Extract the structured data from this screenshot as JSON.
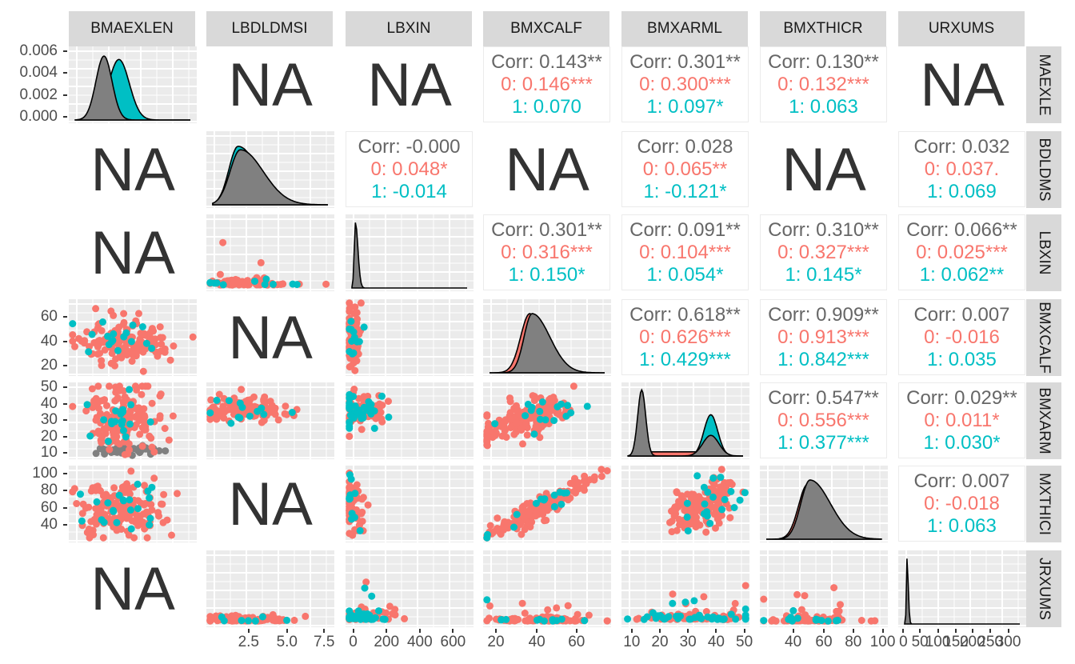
{
  "chart_data": {
    "type": "scatter",
    "title": "",
    "variables": [
      "BMAEXLEN",
      "LBDLDMSI",
      "LBXIN",
      "BMXCALF",
      "BMXARML",
      "BMXTHICR",
      "URXUMS"
    ],
    "row_strip_labels": [
      "MAEXLE",
      "BDLDMS",
      "LBXIN",
      "BMXCALF",
      "BMXARM",
      "MXTHICI",
      "JRXUMS"
    ],
    "groups": [
      {
        "name": "0",
        "color": "#f8766d"
      },
      {
        "name": "1",
        "color": "#00bfc4"
      },
      {
        "name": "NA",
        "color": "#808080"
      }
    ],
    "na_label": "NA",
    "correlations": [
      {
        "row": 0,
        "col": 3,
        "total": "Corr: 0.143**",
        "g0": "0: 0.146***",
        "g1": "1: 0.070"
      },
      {
        "row": 0,
        "col": 4,
        "total": "Corr: 0.301**",
        "g0": "0: 0.300***",
        "g1": "1: 0.097*"
      },
      {
        "row": 0,
        "col": 5,
        "total": "Corr: 0.130**",
        "g0": "0: 0.132***",
        "g1": "1: 0.063"
      },
      {
        "row": 1,
        "col": 2,
        "total": "Corr: -0.000",
        "g0": "0: 0.048*",
        "g1": "1: -0.014"
      },
      {
        "row": 1,
        "col": 4,
        "total": "Corr: 0.028",
        "g0": "0: 0.065**",
        "g1": "1: -0.121*"
      },
      {
        "row": 1,
        "col": 6,
        "total": "Corr: 0.032",
        "g0": "0: 0.037.",
        "g1": "1: 0.069"
      },
      {
        "row": 2,
        "col": 3,
        "total": "Corr: 0.301**",
        "g0": "0: 0.316***",
        "g1": "1: 0.150*"
      },
      {
        "row": 2,
        "col": 4,
        "total": "Corr: 0.091**",
        "g0": "0: 0.104***",
        "g1": "1: 0.054*"
      },
      {
        "row": 2,
        "col": 5,
        "total": "Corr: 0.310**",
        "g0": "0: 0.327***",
        "g1": "1: 0.145*"
      },
      {
        "row": 2,
        "col": 6,
        "total": "Corr: 0.066**",
        "g0": "0: 0.025***",
        "g1": "1: 0.062**"
      },
      {
        "row": 3,
        "col": 4,
        "total": "Corr: 0.618**",
        "g0": "0: 0.626***",
        "g1": "1: 0.429***"
      },
      {
        "row": 3,
        "col": 5,
        "total": "Corr: 0.909**",
        "g0": "0: 0.913***",
        "g1": "1: 0.842***"
      },
      {
        "row": 3,
        "col": 6,
        "total": "Corr: 0.007",
        "g0": "0: -0.016",
        "g1": "1: 0.035"
      },
      {
        "row": 4,
        "col": 5,
        "total": "Corr: 0.547**",
        "g0": "0: 0.556***",
        "g1": "1: 0.377***"
      },
      {
        "row": 4,
        "col": 6,
        "total": "Corr: 0.029**",
        "g0": "0: 0.011*",
        "g1": "1: 0.030*"
      },
      {
        "row": 5,
        "col": 6,
        "total": "Corr: 0.007",
        "g0": "0: -0.018",
        "g1": "1: 0.063"
      }
    ],
    "na_cells": [
      {
        "row": 0,
        "col": 1
      },
      {
        "row": 0,
        "col": 2
      },
      {
        "row": 0,
        "col": 6
      },
      {
        "row": 1,
        "col": 0
      },
      {
        "row": 1,
        "col": 3
      },
      {
        "row": 1,
        "col": 5
      },
      {
        "row": 2,
        "col": 0
      },
      {
        "row": 3,
        "col": 1
      },
      {
        "row": 5,
        "col": 1
      },
      {
        "row": 6,
        "col": 0
      }
    ],
    "density_cells": [
      {
        "row": 0,
        "col": 0,
        "desc": "bimodal-overlap, teal shifted right"
      },
      {
        "row": 1,
        "col": 1,
        "desc": "right-skewed"
      },
      {
        "row": 2,
        "col": 2,
        "desc": "sharp spike near 0"
      },
      {
        "row": 3,
        "col": 3,
        "desc": "unimodal ~38"
      },
      {
        "row": 4,
        "col": 4,
        "desc": "bimodal ~14 and ~38"
      },
      {
        "row": 5,
        "col": 5,
        "desc": "unimodal ~50"
      },
      {
        "row": 6,
        "col": 6,
        "desc": "spike near 0"
      }
    ],
    "scatter_cells": [
      {
        "row": 2,
        "col": 1
      },
      {
        "row": 3,
        "col": 0
      },
      {
        "row": 3,
        "col": 2
      },
      {
        "row": 4,
        "col": 0
      },
      {
        "row": 4,
        "col": 1
      },
      {
        "row": 4,
        "col": 2
      },
      {
        "row": 4,
        "col": 3
      },
      {
        "row": 5,
        "col": 0
      },
      {
        "row": 5,
        "col": 2
      },
      {
        "row": 5,
        "col": 3
      },
      {
        "row": 5,
        "col": 4
      },
      {
        "row": 6,
        "col": 1
      },
      {
        "row": 6,
        "col": 2
      },
      {
        "row": 6,
        "col": 3
      },
      {
        "row": 6,
        "col": 4
      },
      {
        "row": 6,
        "col": 5
      }
    ],
    "y_axes": [
      {
        "row": 0,
        "ticks": [
          "0.006",
          "0.004",
          "0.002",
          "0.000"
        ],
        "range": [
          0,
          0.006
        ]
      },
      {
        "row": 3,
        "ticks": [
          "60",
          "40",
          "20"
        ],
        "range": [
          15,
          75
        ]
      },
      {
        "row": 4,
        "ticks": [
          "50",
          "40",
          "30",
          "20",
          "10"
        ],
        "range": [
          8,
          50
        ]
      },
      {
        "row": 5,
        "ticks": [
          "100",
          "80",
          "60",
          "40"
        ],
        "range": [
          25,
          100
        ]
      }
    ],
    "x_axes": [
      {
        "col": 1,
        "ticks": [
          "2.5",
          "5.0",
          "7.5"
        ],
        "range": [
          0,
          9.5
        ]
      },
      {
        "col": 2,
        "ticks": [
          "0",
          "200",
          "400",
          "600"
        ],
        "range": [
          -20,
          700
        ]
      },
      {
        "col": 3,
        "ticks": [
          "20",
          "40",
          "60"
        ],
        "range": [
          15,
          78
        ]
      },
      {
        "col": 4,
        "ticks": [
          "10",
          "20",
          "30",
          "40",
          "50"
        ],
        "range": [
          8,
          52
        ]
      },
      {
        "col": 5,
        "ticks": [
          "40",
          "60",
          "80",
          "100"
        ],
        "range": [
          22,
          102
        ]
      },
      {
        "col": 6,
        "ticks": [
          "0",
          "50",
          "100",
          "150",
          "200",
          "250",
          "300"
        ],
        "range": [
          -10,
          310
        ]
      }
    ]
  }
}
